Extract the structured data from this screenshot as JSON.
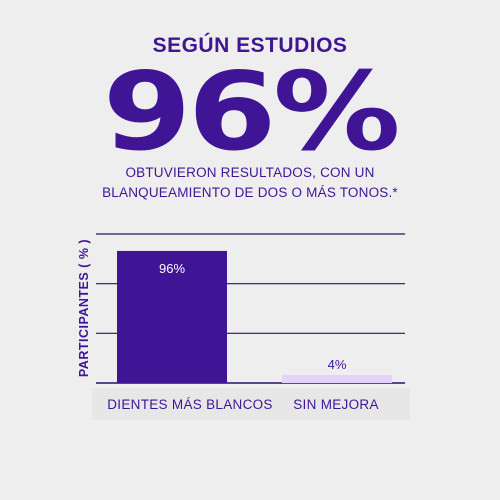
{
  "colors": {
    "accent": "#3f1596",
    "bar_primary": "#3f1596",
    "bar_secondary": "#e3d3fb",
    "grid": "#2a1166",
    "background": "#efeeee",
    "bar_label_primary": "#ffffff",
    "bar_label_secondary": "#3f1596"
  },
  "header": {
    "kicker": "SEGÚN ESTUDIOS",
    "headline": "96%",
    "sub_line_1": "OBTUVIERON RESULTADOS, CON UN",
    "sub_line_2": "BLANQUEAMIENTO DE DOS O MÁS TONOS.*"
  },
  "chart_data": {
    "type": "bar",
    "categories": [
      "DIENTES MÁS BLANCOS",
      "SIN MEJORA"
    ],
    "values": [
      96,
      4
    ],
    "data_labels": [
      "96%",
      "4%"
    ],
    "ylabel": "PARTICIPANTES ( % )",
    "xlabel": "",
    "ylim": [
      0,
      100
    ],
    "gridlines": 4,
    "grid": true
  }
}
